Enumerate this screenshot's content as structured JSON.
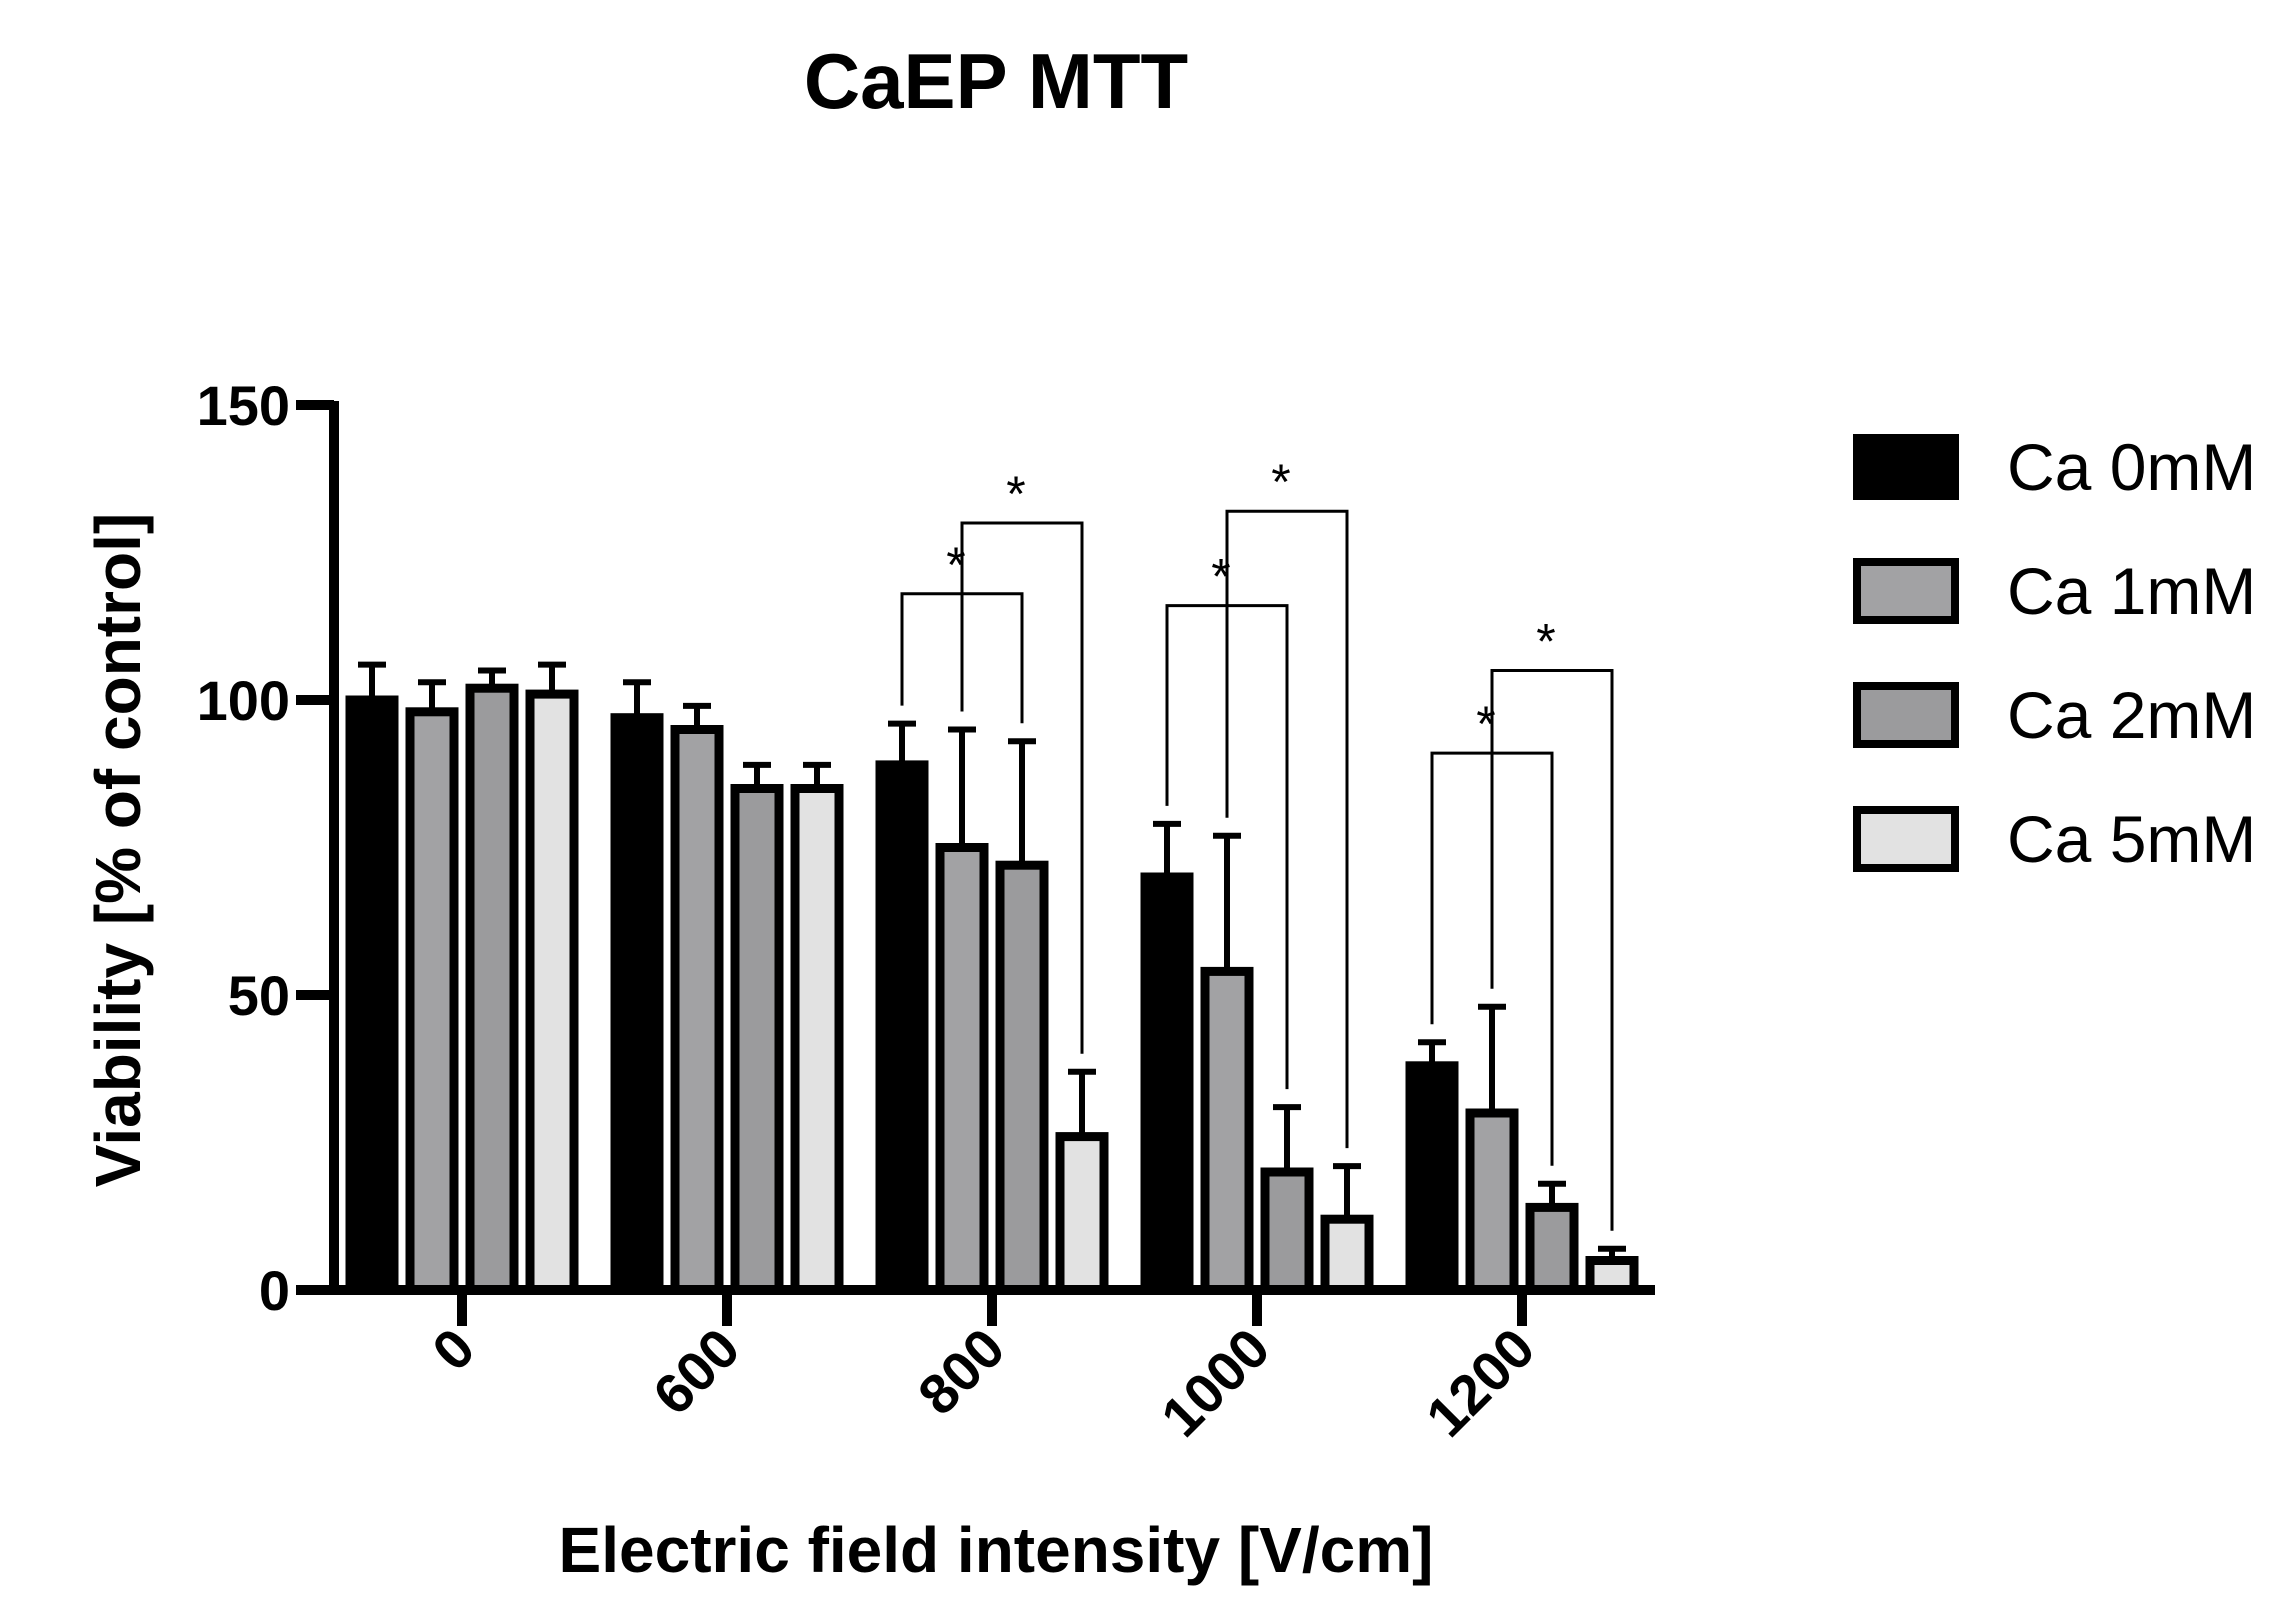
{
  "chart_data": {
    "type": "bar",
    "title": "CaEP MTT",
    "xlabel": "Electric field intensity [V/cm]",
    "ylabel": "Viability [% of control]",
    "ylim": [
      0,
      150
    ],
    "yticks": [
      "0",
      "50",
      "100",
      "150"
    ],
    "categories": [
      "0",
      "600",
      "800",
      "1000",
      "1200"
    ],
    "series": [
      {
        "name": "Ca 0mM",
        "color": "#000000",
        "values": [
          100,
          97,
          89,
          70,
          38
        ],
        "errors": [
          6,
          6,
          7,
          9,
          4
        ]
      },
      {
        "name": "Ca 1mM",
        "color": "#a2a2a4",
        "values": [
          98,
          95,
          75,
          54,
          30
        ],
        "errors": [
          5,
          4,
          20,
          23,
          18
        ]
      },
      {
        "name": "Ca 2mM",
        "color": "#9b9b9d",
        "values": [
          102,
          85,
          72,
          20,
          14
        ],
        "errors": [
          3,
          4,
          21,
          11,
          4
        ]
      },
      {
        "name": "Ca 5mM",
        "color": "#e2e2e2",
        "values": [
          101,
          85,
          26,
          12,
          5
        ],
        "errors": [
          5,
          4,
          11,
          9,
          2
        ]
      }
    ],
    "significance": [
      {
        "category": 2,
        "from": 0,
        "to": 2,
        "top": 118,
        "label": "*"
      },
      {
        "category": 2,
        "from": 1,
        "to": 3,
        "top": 130,
        "label": "*"
      },
      {
        "category": 3,
        "from": 0,
        "to": 2,
        "top": 116,
        "label": "*"
      },
      {
        "category": 3,
        "from": 1,
        "to": 3,
        "top": 132,
        "label": "*"
      },
      {
        "category": 4,
        "from": 0,
        "to": 2,
        "top": 91,
        "label": "*"
      },
      {
        "category": 4,
        "from": 1,
        "to": 3,
        "top": 105,
        "label": "*"
      }
    ],
    "legend_position": "right"
  }
}
